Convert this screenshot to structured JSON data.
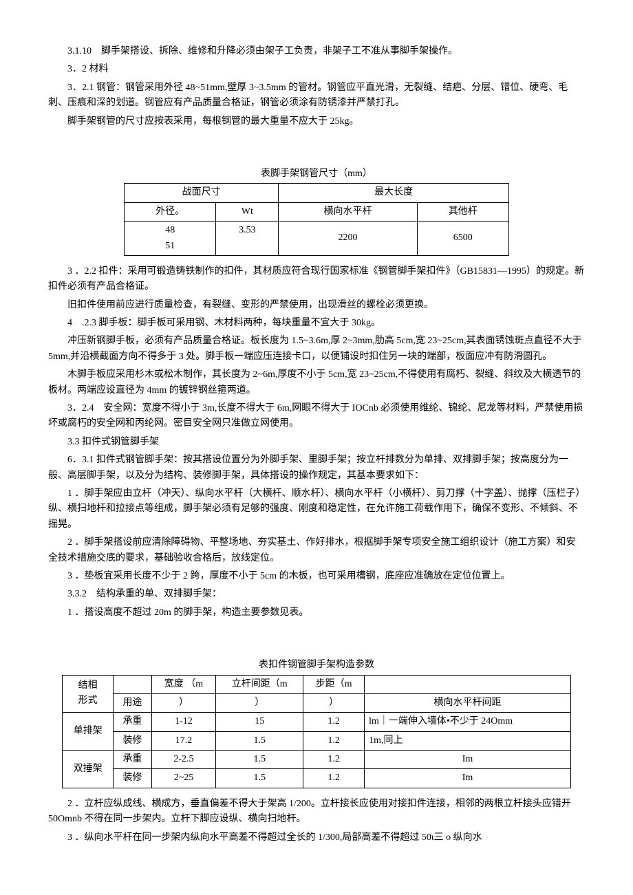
{
  "paragraphs": {
    "p1": "3.1.10　脚手架搭设、拆除、维修和升降必须由架子工负责，非架子工不准从事脚手架操作。",
    "p2": "3．2 材料",
    "p3": "3．2.1 钢管：钢管采用外径 48~51mm,壁厚 3~3.5mm 的管材。钢管应平直光滑，无裂缝、结疤、分层、错位、硬弯、毛刺、压痕和深的划道。钢管应有产品质量合格证，钢管必须涂有防锈漆并严禁打孔。",
    "p4": "脚手架钢管的尺寸应按表采用，每根钢管的最大重量不应大于 25kg。",
    "t1_title": "表脚手架钢管尺寸（mm）",
    "p5": "3 ．2.2 扣件：采用可锻造铸铁制作的扣件，其材质应符合现行国家标准《钢管脚手架扣件》（GB15831—1995）的规定。新扣件必须有产品合格证。",
    "p6": "旧扣件使用前应进行质量检查，有裂缝、变形的严禁使用，出现滑丝的螺栓必须更换。",
    "p7": "4　.2.3 脚手板：脚手板可采用钢、木材料两种，每块重量不宜大于 30kg。",
    "p8": "冲压新钢脚手板，必须有产品质量合格证。板长度为 1.5~3.6m,厚 2~3mm,肋高 5cm,宽 23~25cm,其表面锈蚀斑点直径不大于 5mm,并沿横截面方向不得多于 3 处。脚手板一端应压连接卡口，以便铺设时扣住另一块的端部，板面应冲有防滑圆孔。",
    "p9": "木脚手板应采用杉木或松木制作，其长度为 2~6m,厚度不小于 5cm,宽 23~25cm,不得使用有腐朽、裂缝、斜纹及大横透节的板材。两端应设直径为 4mm 的镀锌钢丝箍两道。",
    "p10": "3．2.4　安全网：宽度不得小于 3m,长度不得大于 6m,网眼不得大于 IOCnb 必须使用维纶、锦纶、尼龙等材料，严禁使用损坏或腐朽的安全网和丙纶网。密目安全网只准做立网使用。",
    "p11": "3.3 扣件式钢管脚手架",
    "p12": "6．3.1 扣件式钢管脚手架：按其搭设位置分为外脚手架、里脚手架；按立杆排数分为单排、双排脚手架；按高度分为一般、高层脚手架，以及分为结构、装修脚手架，具体搭设的操作规定，其基本要求如下：",
    "p13": "1 ．脚手架应由立杆（冲天）、纵向水平杆（大横杆、顺水杆）、横向水平杆（小横杆）、剪刀撑（十字盖）、抛撑（压栏子）纵、横扫地杆和拉接点等组成，脚手架必须有足够的强度、刚度和稳定性，在允许施工荷载作用下，确保不变形、不倾斜、不摇晃。",
    "p14": "2 ．脚手架搭设前应清除障碍物、平整场地、夯实基土、作好排水，根据脚手架专项安全施工组织设计（施工方案）和安全技术措施交底的要求，基础验收合格后，放线定位。",
    "p15": "3 ．垫板宜采用长度不少于 2 跨，厚度不小于 5cm 的木板，也可采用槽钢，底座应准确放在定位位置上。",
    "p16": "3.3.2　结构承重的单、双排脚手架：",
    "p17": "1 ．搭设高度不超过 20m 的脚手架，构造主要参数见表。",
    "t2_title": "表扣件钢管脚手架构造参数",
    "p18": "2 ．立杆应纵成线、横成方，垂直偏差不得大于架高 1/200。立杆接长应使用对接扣件连接，相邻的两根立杆接头应错开 50Omnb 不得在同一步架内。立杆下脚应设纵、横向扫地杆。",
    "p19": "3 ．纵向水平杆在同一步架内纵向水平高差不得超过全长的 1/300,局部高差不得超过 50ι三 o 纵向水"
  },
  "table1": {
    "header_group1": "战面尺寸",
    "header_group2": "最大长度",
    "col1": "外径。",
    "col2": "Wt",
    "col3": "横向水平杆",
    "col4": "其他杆",
    "r1c1a": "48",
    "r1c1b": "51",
    "r1c2": "3.53",
    "r1c3": "2200",
    "r1c4": "6500"
  },
  "table2": {
    "h_structure": "结相",
    "h_form": "形式",
    "h_use": "用途",
    "h_width": "宽度 （m",
    "h_width2": "）",
    "h_lgap": "立杆间距（m",
    "h_lgap2": "）",
    "h_step": "步距（m",
    "h_step2": "）",
    "h_hgap": "横向水平杆间距",
    "r1_name": "单排架",
    "r1_use": "承重",
    "r1_w": "1-12",
    "r1_l": "15",
    "r1_s": "1.2",
    "r1_h": "lm｜一端伸入墙体•不少于 24Omm",
    "r2_use": "装修",
    "r2_w": "17.2",
    "r2_l": "1.5",
    "r2_s": "1.2",
    "r2_h": "1m,同上",
    "r3_name": "双捶架",
    "r3_use": "承重",
    "r3_w": "2-2.5",
    "r3_l": "1.5",
    "r3_s": "1.2",
    "r3_h": "Im",
    "r4_use": "装修",
    "r4_w": "2~25",
    "r4_l": "1.5",
    "r4_s": "1.2",
    "r4_h": "Im"
  }
}
